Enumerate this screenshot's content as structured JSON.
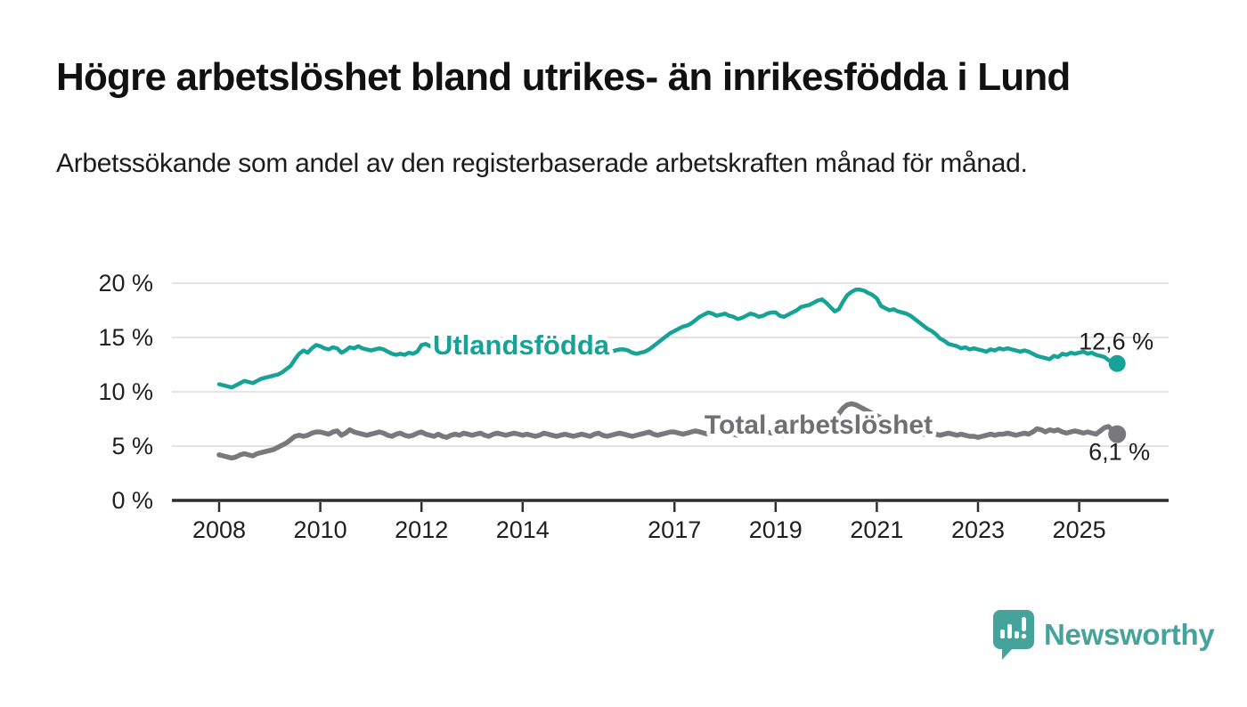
{
  "header": {
    "title": "Högre arbetslöshet bland utrikes- än inrikesfödda i Lund",
    "subtitle": "Arbetssökande som andel av den registerbaserade arbetskraften månad för månad."
  },
  "footer": {
    "brand": "Newsworthy",
    "logo_icon": "speech-bubble-bar-chart-icon"
  },
  "colors": {
    "accent_teal": "#16a296",
    "line_gray": "#78787d",
    "gray_label": "#6f6f74",
    "grid": "#dcdcdc",
    "axis": "#2e2e2e",
    "text": "#1c1c1c",
    "brand_teal": "#46a39c"
  },
  "chart_data": {
    "type": "line",
    "title": "Högre arbetslöshet bland utrikes- än inrikesfödda i Lund",
    "xlabel": "",
    "ylabel": "Arbetssökande som andel av den registerbaserade arbetskraften",
    "unit": "%",
    "grid": true,
    "legend_position": "inline-labels",
    "ylim": [
      0,
      20
    ],
    "y_tick_values": [
      0,
      5,
      10,
      15,
      20
    ],
    "y_tick_labels": [
      "0 %",
      "5 %",
      "10 %",
      "15 %",
      "20 %"
    ],
    "x_tick_years": [
      2008,
      2010,
      2012,
      2014,
      2017,
      2019,
      2021,
      2023,
      2025
    ],
    "x_tick_labels": [
      "2008",
      "2010",
      "2012",
      "2014",
      "2017",
      "2019",
      "2021",
      "2023",
      "2025"
    ],
    "x_start_year": 2008,
    "x_step_months": 1,
    "x_end": "2025-10",
    "series": [
      {
        "name": "Utlandsfödda",
        "color": "#16a296",
        "label_color": "#16a296",
        "end_label": "12,6 %",
        "end_value": 12.6,
        "values": [
          10.7,
          10.6,
          10.5,
          10.4,
          10.6,
          10.8,
          11.0,
          10.9,
          10.8,
          11.0,
          11.2,
          11.3,
          11.4,
          11.5,
          11.6,
          11.8,
          12.1,
          12.4,
          13.0,
          13.5,
          13.8,
          13.6,
          14.0,
          14.3,
          14.2,
          14.0,
          13.9,
          14.1,
          14.0,
          13.6,
          13.8,
          14.1,
          14.0,
          14.2,
          14.0,
          13.9,
          13.8,
          13.9,
          14.0,
          13.9,
          13.7,
          13.5,
          13.4,
          13.5,
          13.4,
          13.6,
          13.5,
          13.7,
          14.3,
          14.4,
          14.2,
          14.1,
          13.9,
          13.6,
          13.4,
          13.5,
          13.6,
          13.7,
          13.6,
          13.5,
          13.5,
          13.6,
          13.7,
          13.6,
          13.5,
          13.4,
          13.5,
          13.6,
          13.5,
          13.6,
          13.7,
          13.6,
          13.6,
          13.7,
          13.8,
          13.7,
          13.6,
          13.5,
          13.4,
          13.5,
          13.6,
          13.5,
          13.6,
          13.7,
          13.8,
          13.7,
          13.6,
          13.5,
          13.6,
          13.5,
          13.4,
          13.5,
          13.6,
          13.7,
          13.8,
          13.9,
          13.9,
          13.8,
          13.6,
          13.5,
          13.6,
          13.7,
          13.9,
          14.2,
          14.5,
          14.8,
          15.1,
          15.4,
          15.6,
          15.8,
          16.0,
          16.1,
          16.3,
          16.6,
          16.9,
          17.1,
          17.3,
          17.2,
          17.0,
          17.1,
          17.2,
          17.0,
          16.9,
          16.7,
          16.8,
          17.0,
          17.2,
          17.1,
          16.9,
          17.0,
          17.2,
          17.3,
          17.3,
          17.0,
          16.9,
          17.1,
          17.3,
          17.5,
          17.8,
          17.9,
          18.0,
          18.2,
          18.4,
          18.5,
          18.2,
          17.8,
          17.4,
          17.6,
          18.3,
          18.9,
          19.2,
          19.4,
          19.4,
          19.3,
          19.1,
          18.9,
          18.6,
          17.9,
          17.7,
          17.5,
          17.6,
          17.4,
          17.3,
          17.2,
          17.0,
          16.7,
          16.4,
          16.1,
          15.8,
          15.6,
          15.3,
          14.9,
          14.7,
          14.4,
          14.3,
          14.2,
          14.0,
          14.1,
          13.9,
          14.0,
          13.9,
          13.8,
          13.7,
          13.9,
          13.8,
          14.0,
          13.9,
          14.0,
          13.9,
          13.8,
          13.7,
          13.8,
          13.7,
          13.5,
          13.3,
          13.2,
          13.1,
          13.0,
          13.3,
          13.2,
          13.5,
          13.4,
          13.6,
          13.5,
          13.6,
          13.7,
          13.5,
          13.6,
          13.4,
          13.3,
          13.2,
          12.9,
          12.8,
          12.6
        ]
      },
      {
        "name": "Total arbetslöshet",
        "color": "#78787d",
        "label_color": "#6f6f74",
        "end_label": "6,1 %",
        "end_value": 6.1,
        "values": [
          4.2,
          4.1,
          4.0,
          3.9,
          4.0,
          4.2,
          4.3,
          4.2,
          4.1,
          4.3,
          4.4,
          4.5,
          4.6,
          4.7,
          4.9,
          5.1,
          5.3,
          5.6,
          5.9,
          6.0,
          5.9,
          6.0,
          6.2,
          6.3,
          6.3,
          6.2,
          6.1,
          6.3,
          6.4,
          6.0,
          6.2,
          6.5,
          6.3,
          6.2,
          6.1,
          6.0,
          6.1,
          6.2,
          6.3,
          6.2,
          6.0,
          5.9,
          6.1,
          6.2,
          6.0,
          5.9,
          6.0,
          6.2,
          6.3,
          6.1,
          6.0,
          5.9,
          6.1,
          5.9,
          5.8,
          6.0,
          6.1,
          6.0,
          6.2,
          6.1,
          6.0,
          6.1,
          6.2,
          6.0,
          5.9,
          6.1,
          6.2,
          6.1,
          6.0,
          6.1,
          6.2,
          6.1,
          6.0,
          6.1,
          6.0,
          5.9,
          6.0,
          6.2,
          6.1,
          6.0,
          5.9,
          6.0,
          6.1,
          6.0,
          5.9,
          6.0,
          6.1,
          6.0,
          5.9,
          6.1,
          6.2,
          6.0,
          5.9,
          6.0,
          6.1,
          6.2,
          6.1,
          6.0,
          5.9,
          6.0,
          6.1,
          6.2,
          6.3,
          6.1,
          6.0,
          6.1,
          6.2,
          6.3,
          6.3,
          6.2,
          6.1,
          6.2,
          6.3,
          6.4,
          6.3,
          6.2,
          6.1,
          6.2,
          6.3,
          6.4,
          6.3,
          6.2,
          6.1,
          6.0,
          6.1,
          6.2,
          6.3,
          6.2,
          6.1,
          6.2,
          6.3,
          6.2,
          6.2,
          6.1,
          6.0,
          6.1,
          6.2,
          6.3,
          6.4,
          6.3,
          6.2,
          6.4,
          6.5,
          6.6,
          6.8,
          7.0,
          7.3,
          8.0,
          8.5,
          8.8,
          8.9,
          8.8,
          8.6,
          8.4,
          8.2,
          8.0,
          7.8,
          7.6,
          7.4,
          7.2,
          7.0,
          6.8,
          6.7,
          6.6,
          6.4,
          6.3,
          6.2,
          6.1,
          6.1,
          6.2,
          6.1,
          6.0,
          6.1,
          6.2,
          6.1,
          6.0,
          6.1,
          6.0,
          5.9,
          5.9,
          5.8,
          5.9,
          6.0,
          6.1,
          6.0,
          6.1,
          6.1,
          6.2,
          6.1,
          6.0,
          6.1,
          6.2,
          6.1,
          6.3,
          6.6,
          6.5,
          6.3,
          6.5,
          6.4,
          6.5,
          6.3,
          6.2,
          6.3,
          6.4,
          6.3,
          6.2,
          6.3,
          6.2,
          6.1,
          6.4,
          6.7,
          6.8,
          6.4,
          6.1
        ]
      }
    ]
  }
}
